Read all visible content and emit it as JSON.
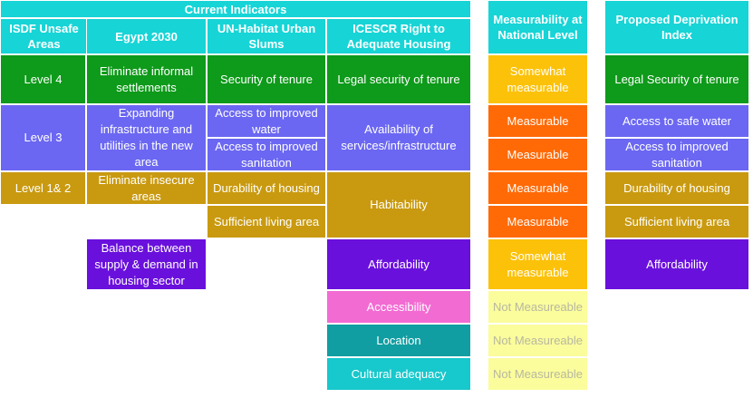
{
  "headers": {
    "current_indicators": "Current Indicators",
    "isdf": "ISDF Unsafe Areas",
    "egypt": "Egypt 2030",
    "unhabitat": "UN-Habitat Urban Slums",
    "icescr": "ICESCR Right to Adequate Housing",
    "measurability": "Measurability at National Level",
    "proposed": "Proposed Deprivation Index"
  },
  "isdf": {
    "level4": "Level 4",
    "level3": "Level 3",
    "level12": "Level 1& 2"
  },
  "egypt": {
    "eliminate_informal": "Eliminate informal settlements",
    "expanding": "Expanding infrastructure and utilities in the new area",
    "eliminate_insecure": "Eliminate insecure areas",
    "balance": "Balance between supply & demand in housing sector"
  },
  "unhabitat": {
    "security": "Security of tenure",
    "water": "Access to improved water",
    "sanitation": "Access to improved sanitation",
    "durability": "Durability of housing",
    "living_area": "Sufficient living area"
  },
  "icescr": {
    "legal_security": "Legal security of tenure",
    "availability": "Availability of services/infrastructure",
    "habitability": "Habitability",
    "affordability": "Affordability",
    "accessibility": "Accessibility",
    "location": "Location",
    "cultural": "Cultural adequacy"
  },
  "measurability": {
    "r1": "Somewhat measurable",
    "r2": "Measurable",
    "r3": "Measurable",
    "r4": "Measurable",
    "r5": "Measurable",
    "r6": "Somewhat measurable",
    "r7": "Not Measureable",
    "r8": "Not Measureable",
    "r9": "Not Measureable"
  },
  "proposed": {
    "r1": "Legal Security of tenure",
    "r2": "Access to safe water",
    "r3": "Access to improved sanitation",
    "r4": "Durability of housing",
    "r5": "Sufficient living area",
    "r6": "Affordability"
  }
}
